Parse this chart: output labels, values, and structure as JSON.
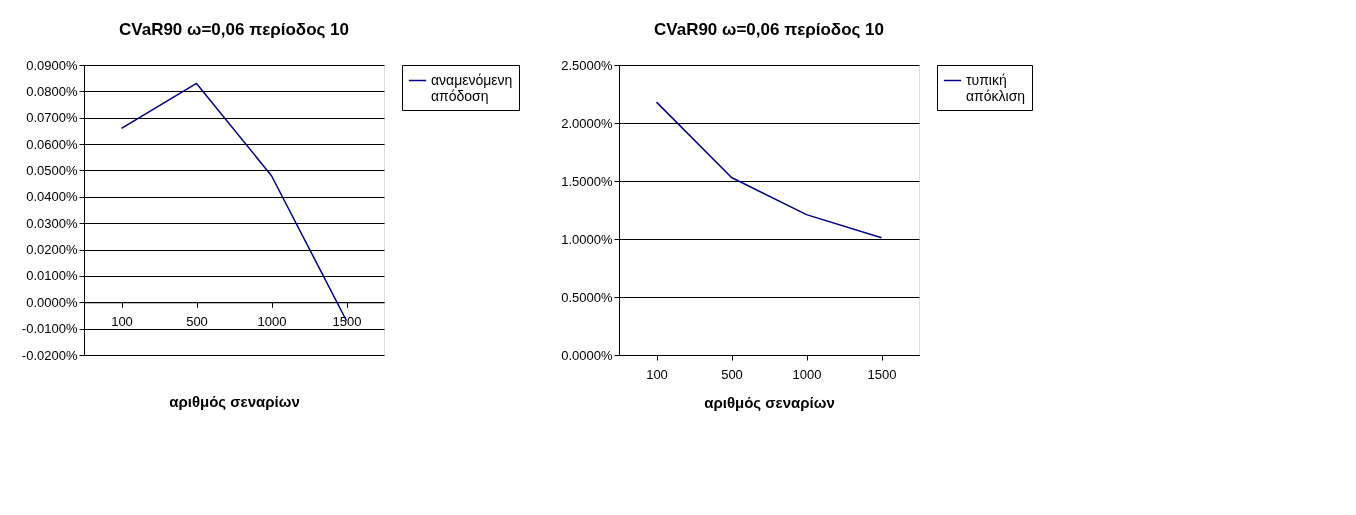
{
  "chart_data": [
    {
      "type": "line",
      "title": "CVaR90 ω=0,06 περίοδος 10",
      "xlabel": "αριθμός σεναρίων",
      "categories": [
        "100",
        "500",
        "1000",
        "1500"
      ],
      "series": [
        {
          "name": "αναμενόμενη απόδοση",
          "color": "#000080",
          "values": [
            0.066,
            0.083,
            0.048,
            -0.007
          ]
        }
      ],
      "ylim": [
        -0.02,
        0.09
      ],
      "yticks": [
        {
          "value": -0.02,
          "label": "-0.0200%"
        },
        {
          "value": -0.01,
          "label": "-0.0100%"
        },
        {
          "value": 0,
          "label": "0.0000%"
        },
        {
          "value": 0.01,
          "label": "0.0100%"
        },
        {
          "value": 0.02,
          "label": "0.0200%"
        },
        {
          "value": 0.03,
          "label": "0.0300%"
        },
        {
          "value": 0.04,
          "label": "0.0400%"
        },
        {
          "value": 0.05,
          "label": "0.0500%"
        },
        {
          "value": 0.06,
          "label": "0.0600%"
        },
        {
          "value": 0.07,
          "label": "0.0700%"
        },
        {
          "value": 0.08,
          "label": "0.0800%"
        },
        {
          "value": 0.09,
          "label": "0.0900%"
        }
      ],
      "grid": "y",
      "legend": "right"
    },
    {
      "type": "line",
      "title": "CVaR90 ω=0,06 περίοδος 10",
      "xlabel": "αριθμός σεναρίων",
      "categories": [
        "100",
        "500",
        "1000",
        "1500"
      ],
      "series": [
        {
          "name": "τυπική απόκλιση",
          "color": "#000080",
          "values": [
            2.18,
            1.53,
            1.21,
            1.01
          ]
        }
      ],
      "ylim": [
        0,
        2.5
      ],
      "yticks": [
        {
          "value": 0,
          "label": "0.0000%"
        },
        {
          "value": 0.5,
          "label": "0.5000%"
        },
        {
          "value": 1,
          "label": "1.0000%"
        },
        {
          "value": 1.5,
          "label": "1.5000%"
        },
        {
          "value": 2,
          "label": "2.0000%"
        },
        {
          "value": 2.5,
          "label": "2.5000%"
        }
      ],
      "grid": "y",
      "legend": "right"
    }
  ]
}
